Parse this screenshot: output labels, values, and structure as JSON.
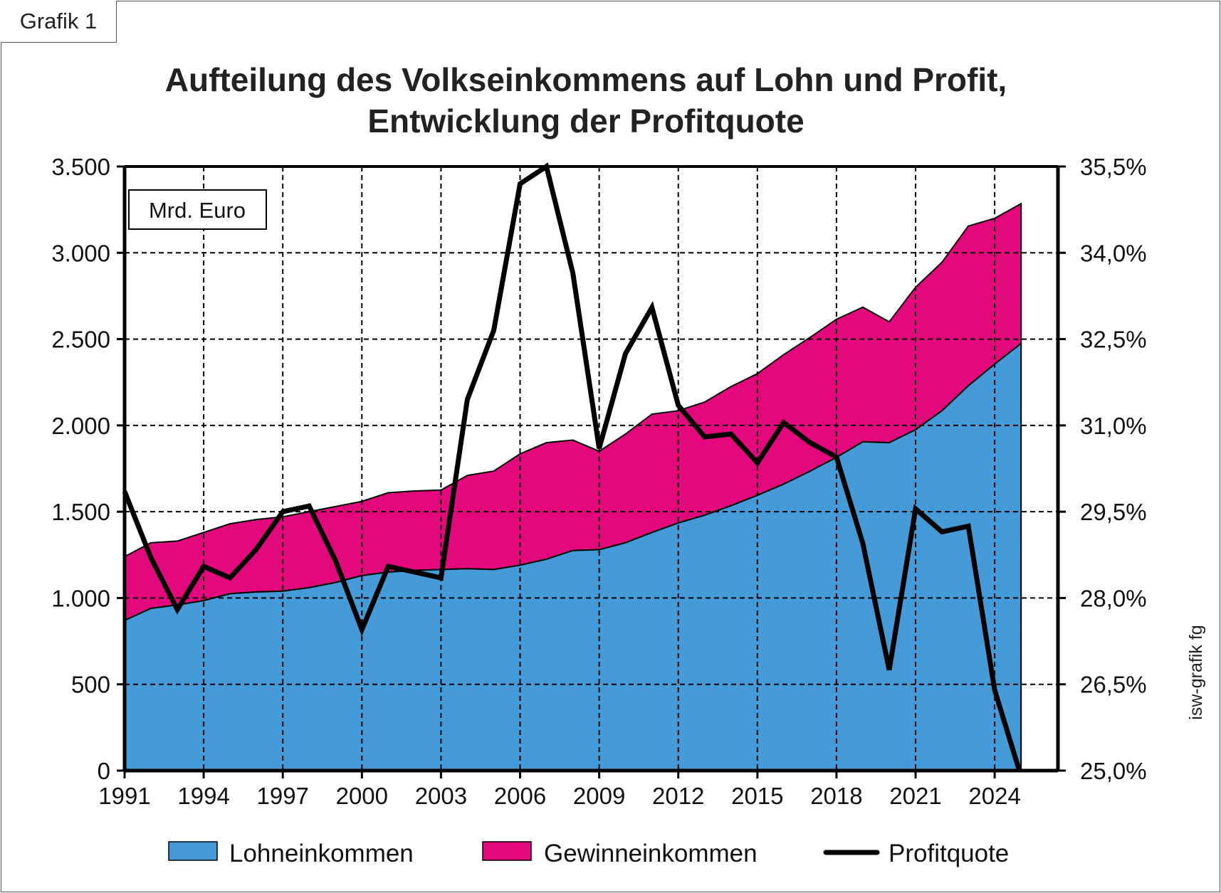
{
  "grafik_label": "Grafik 1",
  "credit": "isw-grafik fg",
  "chart_data": {
    "type": "area",
    "title_lines": [
      "Aufteilung des Volkseinkommens auf Lohn und Profit,",
      "Entwicklung der Profitquote"
    ],
    "unit_label": "Mrd. Euro",
    "x": [
      1991,
      1992,
      1993,
      1994,
      1995,
      1996,
      1997,
      1998,
      1999,
      2000,
      2001,
      2002,
      2003,
      2004,
      2005,
      2006,
      2007,
      2008,
      2009,
      2010,
      2011,
      2012,
      2013,
      2014,
      2015,
      2016,
      2017,
      2018,
      2019,
      2020,
      2021,
      2022,
      2023,
      2024,
      2025
    ],
    "x_ticks": [
      1991,
      1994,
      1997,
      2000,
      2003,
      2006,
      2009,
      2012,
      2015,
      2018,
      2021,
      2024
    ],
    "x_tick_labels": [
      "1991",
      "1994",
      "1997",
      "2000",
      "2003",
      "2006",
      "2009",
      "2012",
      "2015",
      "2018",
      "2021",
      "2024"
    ],
    "x_range": [
      1991,
      2026.4
    ],
    "y_left": {
      "range": [
        0,
        3500
      ],
      "ticks": [
        0,
        500,
        1000,
        1500,
        2000,
        2500,
        3000,
        3500
      ],
      "tick_labels": [
        "0",
        "500",
        "1.000",
        "1.500",
        "2.000",
        "2.500",
        "3.000",
        "3.500"
      ]
    },
    "y_right": {
      "range": [
        25.0,
        35.5
      ],
      "ticks": [
        25.0,
        26.5,
        28.0,
        29.5,
        31.0,
        32.5,
        34.0,
        35.5
      ],
      "tick_labels": [
        "25,0%",
        "26,5%",
        "28,0%",
        "29,5%",
        "31,0%",
        "32,5%",
        "34,0%",
        "35,5%"
      ]
    },
    "series": [
      {
        "name": "Lohneinkommen",
        "kind": "area",
        "color": "#449bd8",
        "values": [
          870,
          940,
          960,
          985,
          1025,
          1035,
          1040,
          1060,
          1090,
          1130,
          1150,
          1160,
          1165,
          1170,
          1165,
          1190,
          1225,
          1275,
          1280,
          1320,
          1380,
          1435,
          1480,
          1535,
          1595,
          1660,
          1735,
          1815,
          1905,
          1900,
          1975,
          2085,
          2230,
          2355,
          2475
        ]
      },
      {
        "name": "Gewinneinkommen",
        "kind": "area",
        "color": "#e3097c",
        "totals": [
          1240,
          1320,
          1330,
          1380,
          1430,
          1455,
          1470,
          1500,
          1530,
          1560,
          1610,
          1620,
          1625,
          1710,
          1735,
          1835,
          1900,
          1915,
          1850,
          1950,
          2065,
          2085,
          2135,
          2225,
          2300,
          2410,
          2510,
          2615,
          2685,
          2600,
          2800,
          2945,
          3155,
          3200,
          3285
        ]
      },
      {
        "name": "Profitquote",
        "kind": "line",
        "axis": "right",
        "color": "#000000",
        "values": [
          29.85,
          28.7,
          27.8,
          28.55,
          28.35,
          28.85,
          29.5,
          29.6,
          28.65,
          27.45,
          28.55,
          28.45,
          28.35,
          31.45,
          32.65,
          35.2,
          35.5,
          33.65,
          30.6,
          32.25,
          33.05,
          31.35,
          30.8,
          30.85,
          30.35,
          31.05,
          30.7,
          30.45,
          28.95,
          26.75,
          29.55,
          29.15,
          29.25,
          26.4,
          24.9
        ]
      }
    ],
    "grid": true,
    "legend_position": "bottom"
  }
}
